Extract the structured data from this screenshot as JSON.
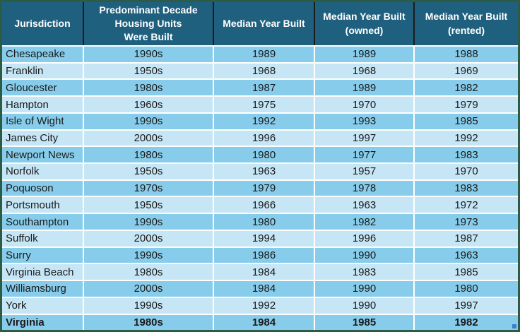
{
  "colors": {
    "outer_border": "#2d5c46",
    "header_background": "#20607f",
    "header_text": "#ffffff",
    "header_divider": "#1c1c1c",
    "row_dark": "#87cdeb",
    "row_light": "#c6e6f6",
    "cell_divider": "#ffffff",
    "body_text": "#1a1a1a",
    "fill_handle": "#3e7ec8"
  },
  "table": {
    "columns": [
      {
        "key": "jurisdiction",
        "label": "Jurisdiction"
      },
      {
        "key": "decade",
        "label": "Predominant Decade\nHousing Units\nWere Built"
      },
      {
        "key": "median",
        "label": "Median Year Built"
      },
      {
        "key": "owned",
        "label": "Median Year Built\n(owned)"
      },
      {
        "key": "rented",
        "label": "Median Year Built\n(rented)"
      }
    ],
    "rows": [
      {
        "jurisdiction": "Chesapeake",
        "decade": "1990s",
        "median": "1989",
        "owned": "1989",
        "rented": "1988"
      },
      {
        "jurisdiction": "Franklin",
        "decade": "1950s",
        "median": "1968",
        "owned": "1968",
        "rented": "1969"
      },
      {
        "jurisdiction": "Gloucester",
        "decade": "1980s",
        "median": "1987",
        "owned": "1989",
        "rented": "1982"
      },
      {
        "jurisdiction": "Hampton",
        "decade": "1960s",
        "median": "1975",
        "owned": "1970",
        "rented": "1979"
      },
      {
        "jurisdiction": "Isle of Wight",
        "decade": "1990s",
        "median": "1992",
        "owned": "1993",
        "rented": "1985"
      },
      {
        "jurisdiction": "James City",
        "decade": "2000s",
        "median": "1996",
        "owned": "1997",
        "rented": "1992"
      },
      {
        "jurisdiction": "Newport News",
        "decade": "1980s",
        "median": "1980",
        "owned": "1977",
        "rented": "1983"
      },
      {
        "jurisdiction": "Norfolk",
        "decade": "1950s",
        "median": "1963",
        "owned": "1957",
        "rented": "1970"
      },
      {
        "jurisdiction": "Poquoson",
        "decade": "1970s",
        "median": "1979",
        "owned": "1978",
        "rented": "1983"
      },
      {
        "jurisdiction": "Portsmouth",
        "decade": "1950s",
        "median": "1966",
        "owned": "1963",
        "rented": "1972"
      },
      {
        "jurisdiction": "Southampton",
        "decade": "1990s",
        "median": "1980",
        "owned": "1982",
        "rented": "1973"
      },
      {
        "jurisdiction": "Suffolk",
        "decade": "2000s",
        "median": "1994",
        "owned": "1996",
        "rented": "1987"
      },
      {
        "jurisdiction": "Surry",
        "decade": "1990s",
        "median": "1986",
        "owned": "1990",
        "rented": "1963"
      },
      {
        "jurisdiction": "Virginia Beach",
        "decade": "1980s",
        "median": "1984",
        "owned": "1983",
        "rented": "1985"
      },
      {
        "jurisdiction": "Williamsburg",
        "decade": "2000s",
        "median": "1984",
        "owned": "1990",
        "rented": "1980"
      },
      {
        "jurisdiction": "York",
        "decade": "1990s",
        "median": "1992",
        "owned": "1990",
        "rented": "1997"
      }
    ],
    "summary_row": {
      "jurisdiction": "Virginia",
      "decade": "1980s",
      "median": "1984",
      "owned": "1985",
      "rented": "1982"
    }
  }
}
